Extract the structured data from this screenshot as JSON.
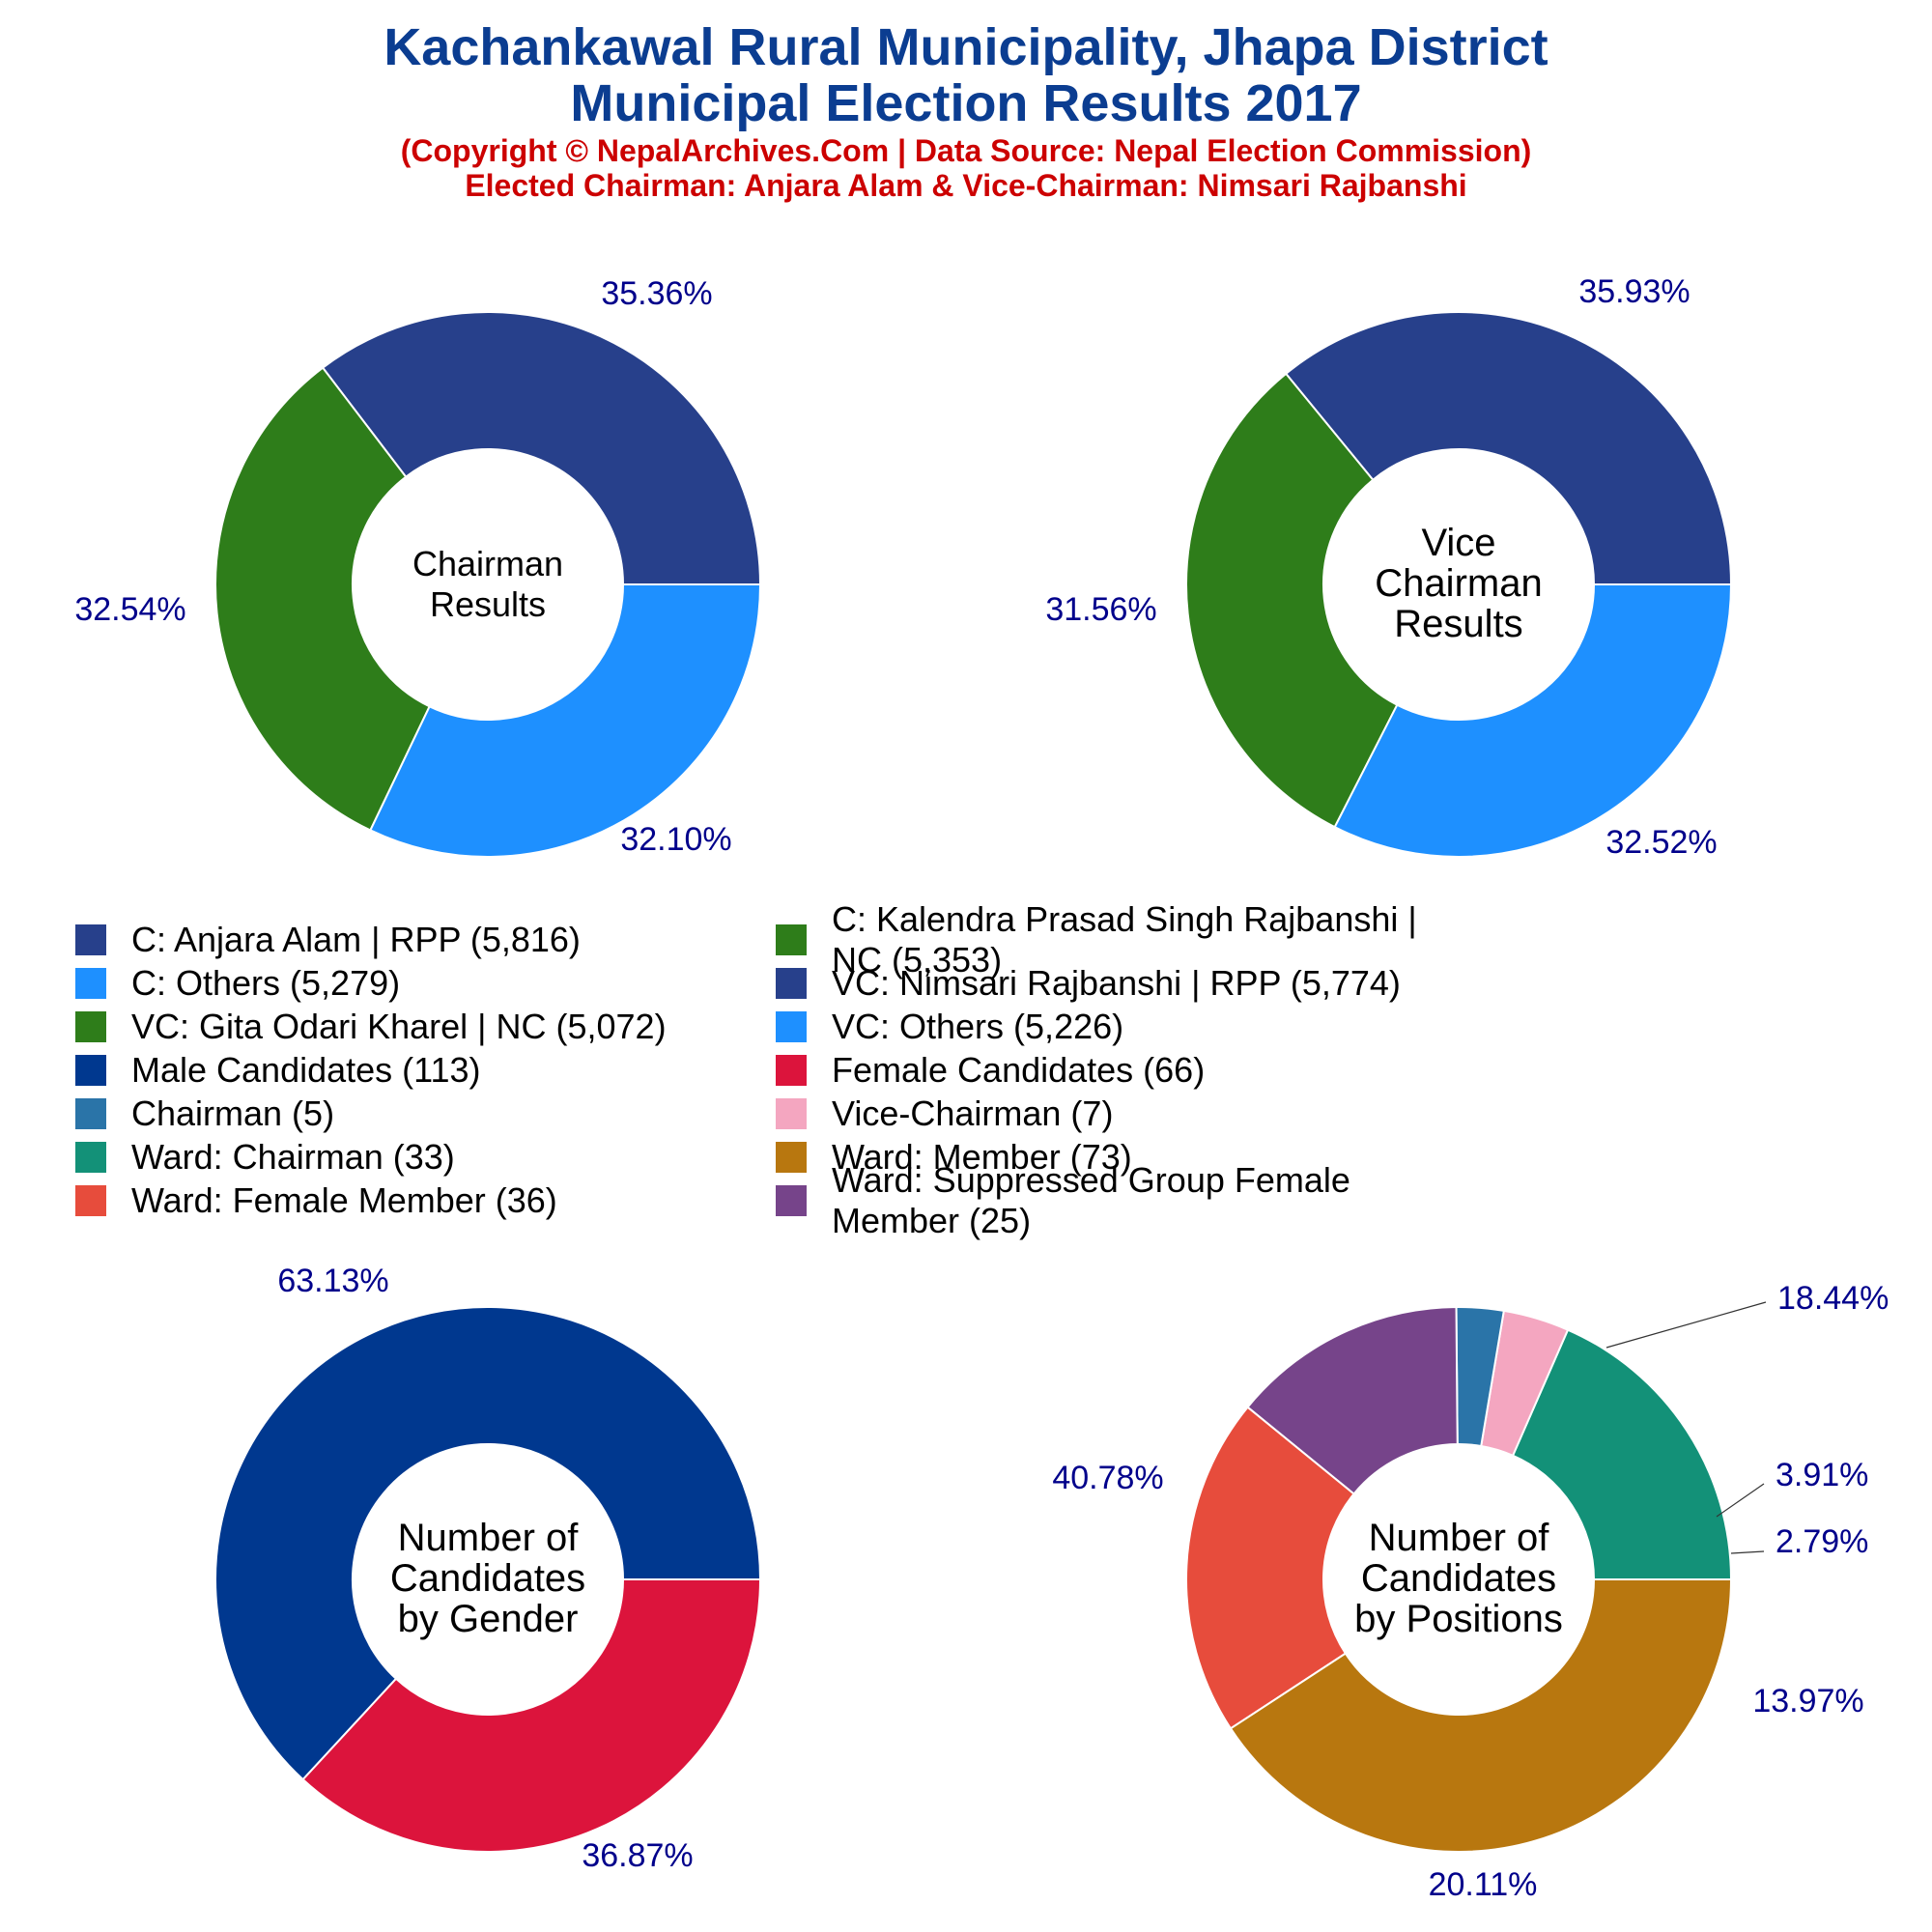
{
  "header": {
    "title_line1": "Kachankawal Rural Municipality, Jhapa District",
    "title_line2": "Municipal Election Results 2017",
    "subtitle_line1": "(Copyright © NepalArchives.Com | Data Source: Nepal Election Commission)",
    "subtitle_line2": "Elected Chairman: Anjara Alam & Vice-Chairman: Nimsari Rajbanshi"
  },
  "legend": [
    {
      "label": "C: Anjara Alam | RPP (5,816)",
      "color": "#27408b"
    },
    {
      "label": "C: Kalendra Prasad Singh Rajbanshi | NC (5,353)",
      "color": "#2e7d1a"
    },
    {
      "label": "C: Others (5,279)",
      "color": "#1e90ff"
    },
    {
      "label": "VC: Nimsari Rajbanshi | RPP (5,774)",
      "color": "#27408b"
    },
    {
      "label": "VC: Gita Odari Kharel | NC (5,072)",
      "color": "#2e7d1a"
    },
    {
      "label": "VC: Others (5,226)",
      "color": "#1e90ff"
    },
    {
      "label": "Male Candidates (113)",
      "color": "#00388f"
    },
    {
      "label": "Female Candidates (66)",
      "color": "#dc143c"
    },
    {
      "label": "Chairman (5)",
      "color": "#2a74a8"
    },
    {
      "label": "Vice-Chairman (7)",
      "color": "#f4a6c0"
    },
    {
      "label": "Ward: Chairman (33)",
      "color": "#139178"
    },
    {
      "label": "Ward: Member (73)",
      "color": "#b8770f"
    },
    {
      "label": "Ward: Female Member (36)",
      "color": "#e74c3c"
    },
    {
      "label": "Ward: Suppressed Group Female Member (25)",
      "color": "#76448a"
    }
  ],
  "chart_data": [
    {
      "type": "pie",
      "title": "Chairman Results",
      "center_lines": [
        "Chairman",
        "Results"
      ],
      "slices": [
        {
          "name": "C: Anjara Alam | RPP",
          "value": 5816,
          "label": "35.36%",
          "color": "#27408b"
        },
        {
          "name": "C: Kalendra Prasad Singh Rajbanshi | NC",
          "value": 5353,
          "label": "32.54%",
          "color": "#2e7d1a"
        },
        {
          "name": "C: Others",
          "value": 5279,
          "label": "32.10%",
          "color": "#1e90ff"
        }
      ]
    },
    {
      "type": "pie",
      "title": "Vice Chairman Results",
      "center_lines": [
        "Vice",
        "Chairman",
        "Results"
      ],
      "slices": [
        {
          "name": "VC: Nimsari Rajbanshi | RPP",
          "value": 5774,
          "label": "35.93%",
          "color": "#27408b"
        },
        {
          "name": "VC: Gita Odari Kharel | NC",
          "value": 5072,
          "label": "31.56%",
          "color": "#2e7d1a"
        },
        {
          "name": "VC: Others",
          "value": 5226,
          "label": "32.52%",
          "color": "#1e90ff"
        }
      ]
    },
    {
      "type": "pie",
      "title": "Number of Candidates by Gender",
      "center_lines": [
        "Number of",
        "Candidates",
        "by Gender"
      ],
      "slices": [
        {
          "name": "Male Candidates",
          "value": 113,
          "label": "63.13%",
          "color": "#00388f"
        },
        {
          "name": "Female Candidates",
          "value": 66,
          "label": "36.87%",
          "color": "#dc143c"
        }
      ]
    },
    {
      "type": "pie",
      "title": "Number of Candidates by Positions",
      "center_lines": [
        "Number of",
        "Candidates",
        "by Positions"
      ],
      "slices": [
        {
          "name": "Ward: Chairman",
          "value": 33,
          "label": "18.44%",
          "color": "#139178"
        },
        {
          "name": "Vice-Chairman",
          "value": 7,
          "label": "3.91%",
          "color": "#f4a6c0"
        },
        {
          "name": "Chairman",
          "value": 5,
          "label": "2.79%",
          "color": "#2a74a8"
        },
        {
          "name": "Ward: Suppressed Group Female Member",
          "value": 25,
          "label": "13.97%",
          "color": "#76448a"
        },
        {
          "name": "Ward: Female Member",
          "value": 36,
          "label": "20.11%",
          "color": "#e74c3c"
        },
        {
          "name": "Ward: Member",
          "value": 73,
          "label": "40.78%",
          "color": "#b8770f"
        }
      ]
    }
  ]
}
